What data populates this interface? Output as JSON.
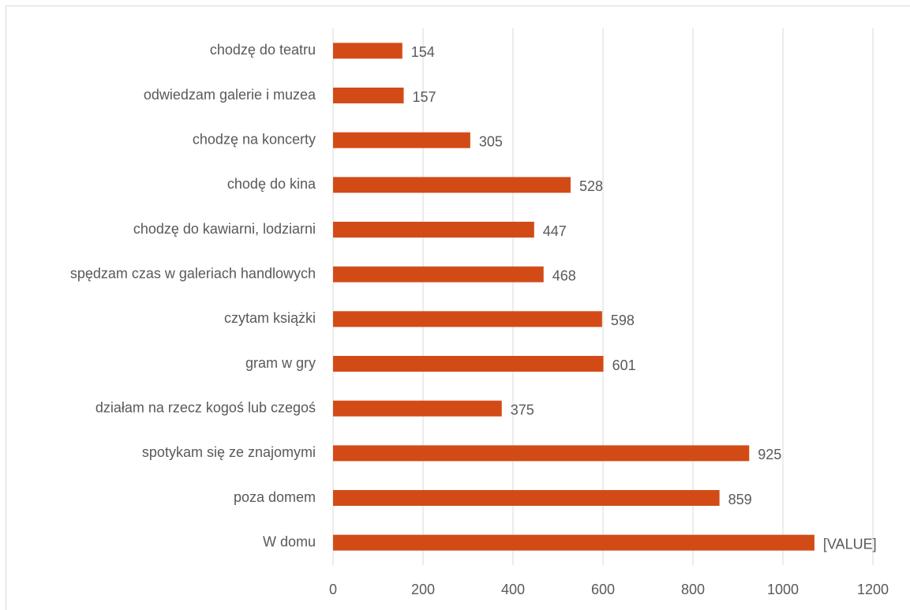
{
  "chart_data": {
    "type": "bar",
    "orientation": "horizontal",
    "categories": [
      "chodzę do teatru",
      "odwiedzam galerie i muzea",
      "chodzę na koncerty",
      "chodę do kina",
      "chodzę do kawiarni, lodziarni",
      "spędzam czas w galeriach handlowych",
      "czytam książki",
      "gram w gry",
      "działam na rzecz kogoś lub czegoś",
      "spotykam się ze znajomymi",
      "poza domem ",
      "W domu"
    ],
    "values": [
      154,
      157,
      305,
      528,
      447,
      468,
      598,
      601,
      375,
      925,
      859,
      1070
    ],
    "value_labels": [
      "154",
      "157",
      "305",
      "528",
      "447",
      "468",
      "598",
      "601",
      "375",
      "925",
      "859",
      "[VALUE]"
    ],
    "color": "#d24b17",
    "xlim": [
      0,
      1200
    ],
    "xticks": [
      0,
      200,
      400,
      600,
      800,
      1000,
      1200
    ],
    "grid": true
  }
}
